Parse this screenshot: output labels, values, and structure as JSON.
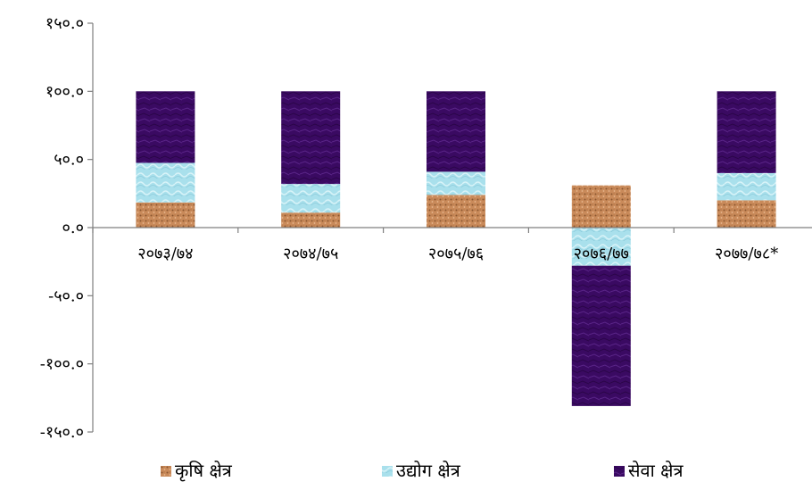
{
  "chart_data": {
    "type": "stacked-bar",
    "categories": [
      "२०७३/७४",
      "२०७४/७५",
      "२०७५/७६",
      "२०७६/७७",
      "२०७७/७८*"
    ],
    "series": [
      {
        "name": "कृषि क्षेत्र",
        "values": [
          18.5,
          11.0,
          24.0,
          31.0,
          20.0
        ],
        "color": "#c98a5a"
      },
      {
        "name": "उद्योग क्षेत्र",
        "values": [
          29.0,
          21.0,
          17.0,
          -28.0,
          20.0
        ],
        "color": "#a9e0ec"
      },
      {
        "name": "सेवा क्षेत्र",
        "values": [
          52.5,
          68.0,
          59.0,
          -103.0,
          60.0
        ],
        "color": "#3a0a62"
      }
    ],
    "ylim": [
      -150,
      150
    ],
    "yticks": [
      150,
      100,
      50,
      0,
      -50,
      -100,
      -150
    ],
    "ytick_labels": [
      "१५०.०",
      "१००.०",
      "५०.०",
      "०.०",
      "-५०.०",
      "-१००.०",
      "-१५०.०"
    ],
    "grid": false,
    "legend_position": "bottom",
    "title": "",
    "xlabel": "",
    "ylabel": ""
  }
}
